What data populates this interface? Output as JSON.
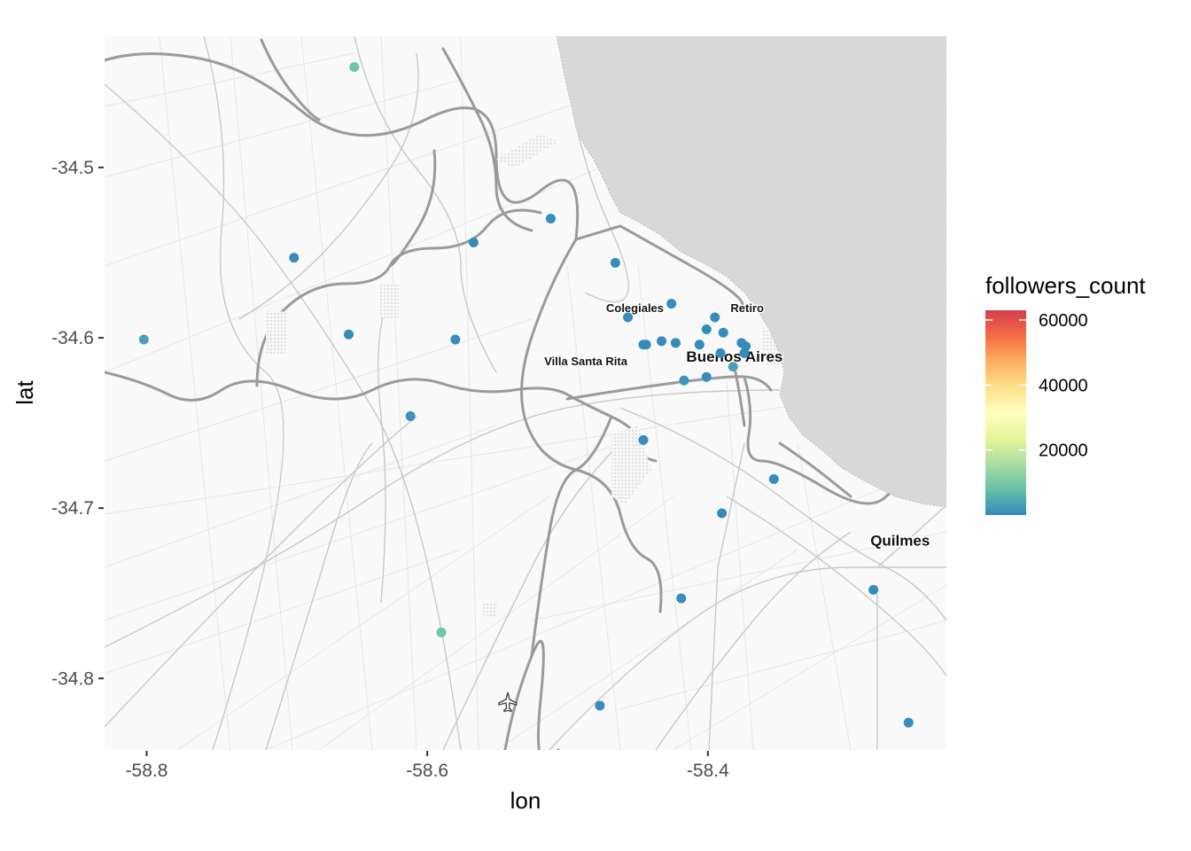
{
  "chart_data": {
    "type": "scatter",
    "basemap": "street map (light grey)",
    "xlabel": "lon",
    "ylabel": "lat",
    "x_ticks": [
      -58.8,
      -58.6,
      -58.4
    ],
    "y_ticks": [
      -34.5,
      -34.6,
      -34.7,
      -34.8
    ],
    "x_tick_labels": [
      "-58.8",
      "-58.6",
      "-58.4"
    ],
    "y_tick_labels": [
      "-34.5",
      "-34.6",
      "-34.7",
      "-34.8"
    ],
    "xlim": [
      -58.83,
      -58.23
    ],
    "ylim": [
      -34.842,
      -34.423
    ],
    "color_legend": {
      "title": "followers_count",
      "palette": "Spectral",
      "min": 0,
      "max": 63000,
      "ticks": [
        20000,
        40000,
        60000
      ],
      "tick_labels": [
        "20000",
        "40000",
        "60000"
      ],
      "colors": [
        "#3288bd",
        "#66c2a5",
        "#abdda4",
        "#e6f598",
        "#ffffbf",
        "#fee08b",
        "#fdae61",
        "#f46d43",
        "#d53e4f"
      ]
    },
    "place_labels": [
      {
        "name": "Colegiales",
        "lon": -58.452,
        "lat": -34.585,
        "size": "small"
      },
      {
        "name": "Retiro",
        "lon": -58.372,
        "lat": -34.585,
        "size": "small"
      },
      {
        "name": "Villa Santa Rita",
        "lon": -58.487,
        "lat": -34.616,
        "size": "small"
      },
      {
        "name": "Buenos Aires",
        "lon": -58.381,
        "lat": -34.614,
        "size": "medium"
      },
      {
        "name": "Quilmes",
        "lon": -58.263,
        "lat": -34.722,
        "size": "medium"
      }
    ],
    "points": [
      {
        "lon": -58.652,
        "lat": -34.441,
        "followers_count": 9000
      },
      {
        "lon": -58.512,
        "lat": -34.53,
        "followers_count": 900
      },
      {
        "lon": -58.567,
        "lat": -34.544,
        "followers_count": 600
      },
      {
        "lon": -58.695,
        "lat": -34.553,
        "followers_count": 700
      },
      {
        "lon": -58.466,
        "lat": -34.556,
        "followers_count": 500
      },
      {
        "lon": -58.426,
        "lat": -34.58,
        "followers_count": 700
      },
      {
        "lon": -58.457,
        "lat": -34.588,
        "followers_count": 800
      },
      {
        "lon": -58.395,
        "lat": -34.588,
        "followers_count": 600
      },
      {
        "lon": -58.802,
        "lat": -34.601,
        "followers_count": 3500
      },
      {
        "lon": -58.656,
        "lat": -34.598,
        "followers_count": 600
      },
      {
        "lon": -58.58,
        "lat": -34.601,
        "followers_count": 600
      },
      {
        "lon": -58.401,
        "lat": -34.595,
        "followers_count": 500
      },
      {
        "lon": -58.389,
        "lat": -34.597,
        "followers_count": 500
      },
      {
        "lon": -58.444,
        "lat": -34.604,
        "followers_count": 700
      },
      {
        "lon": -58.446,
        "lat": -34.604,
        "followers_count": 500
      },
      {
        "lon": -58.433,
        "lat": -34.602,
        "followers_count": 600
      },
      {
        "lon": -58.423,
        "lat": -34.603,
        "followers_count": 500
      },
      {
        "lon": -58.406,
        "lat": -34.604,
        "followers_count": 600
      },
      {
        "lon": -58.376,
        "lat": -34.603,
        "followers_count": 600
      },
      {
        "lon": -58.373,
        "lat": -34.605,
        "followers_count": 500
      },
      {
        "lon": -58.374,
        "lat": -34.609,
        "followers_count": 500
      },
      {
        "lon": -58.391,
        "lat": -34.609,
        "followers_count": 500
      },
      {
        "lon": -58.382,
        "lat": -34.617,
        "followers_count": 3500
      },
      {
        "lon": -58.417,
        "lat": -34.625,
        "followers_count": 1500
      },
      {
        "lon": -58.401,
        "lat": -34.623,
        "followers_count": 700
      },
      {
        "lon": -58.612,
        "lat": -34.646,
        "followers_count": 1500
      },
      {
        "lon": -58.446,
        "lat": -34.66,
        "followers_count": 500
      },
      {
        "lon": -58.353,
        "lat": -34.683,
        "followers_count": 500
      },
      {
        "lon": -58.39,
        "lat": -34.703,
        "followers_count": 500
      },
      {
        "lon": -58.282,
        "lat": -34.748,
        "followers_count": 500
      },
      {
        "lon": -58.419,
        "lat": -34.753,
        "followers_count": 600
      },
      {
        "lon": -58.59,
        "lat": -34.773,
        "followers_count": 9000
      },
      {
        "lon": -58.477,
        "lat": -34.816,
        "followers_count": 600
      },
      {
        "lon": -58.257,
        "lat": -34.826,
        "followers_count": 600
      }
    ]
  }
}
